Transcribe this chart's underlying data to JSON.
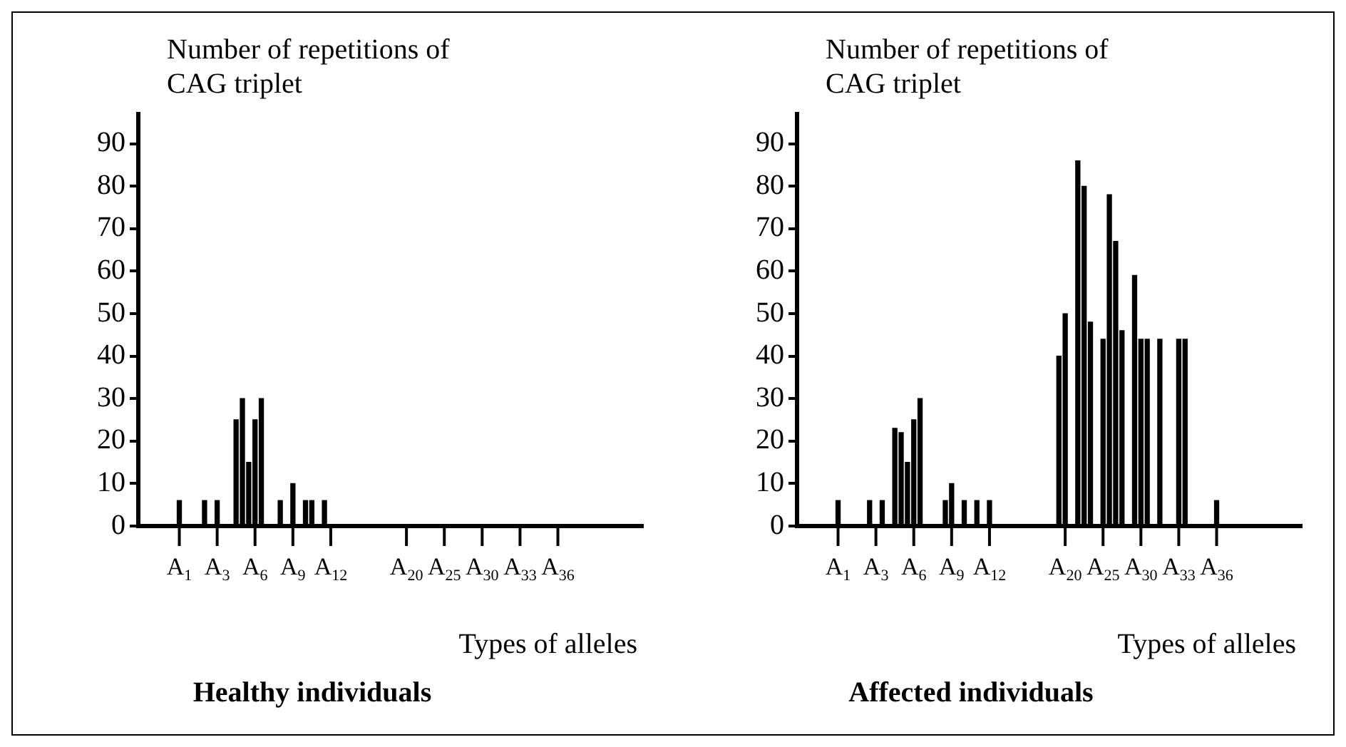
{
  "chart_data": [
    {
      "type": "bar",
      "title": "Healthy individuals",
      "xlabel": "Types of alleles",
      "ylabel": "Number of repetitions of CAG triplet",
      "color": "#000000",
      "categories": [
        null,
        null,
        null,
        null,
        null,
        null,
        "A$_{1}$",
        null,
        null,
        null,
        null,
        null,
        "A$_{3}$",
        null,
        null,
        null,
        null,
        null,
        "A$_{6}$",
        null,
        null,
        null,
        null,
        null,
        "A$_{9}$",
        null,
        null,
        null,
        null,
        null,
        "A$_{12}$",
        null,
        null,
        null,
        null,
        null,
        null,
        null,
        null,
        null,
        null,
        null,
        "A$_{20}$",
        null,
        null,
        null,
        null,
        null,
        "A$_{25}$",
        null,
        null,
        null,
        null,
        null,
        "A$_{30}$",
        null,
        null,
        null,
        null,
        null,
        "A$_{33}$",
        null,
        null,
        null,
        null,
        null,
        "A$_{36}$",
        null,
        null,
        null,
        null,
        null,
        null,
        null,
        null,
        null,
        null,
        null,
        null,
        null
      ],
      "values": [
        null,
        null,
        null,
        null,
        null,
        null,
        6,
        null,
        null,
        null,
        6,
        null,
        6,
        null,
        null,
        25,
        30,
        15,
        25,
        30,
        null,
        null,
        6,
        null,
        10,
        null,
        6,
        6,
        null,
        6,
        null,
        null,
        null,
        null,
        null,
        null,
        null,
        null,
        null,
        null,
        null,
        null,
        null,
        null,
        null,
        null,
        null,
        null,
        null,
        null,
        null,
        null,
        null,
        null,
        null,
        null,
        null,
        null,
        null,
        null,
        null,
        null,
        null,
        null,
        null,
        null,
        null,
        null,
        null,
        null,
        null,
        null,
        null,
        null,
        null,
        null,
        null,
        null,
        null,
        null
      ],
      "ylim": [
        0,
        97
      ],
      "yticks": [
        0,
        10,
        20,
        30,
        40,
        50,
        60,
        70,
        80,
        90
      ]
    },
    {
      "type": "bar",
      "title": "Affected individuals",
      "xlabel": "Types of alleles",
      "ylabel": "Number of repetitions of CAG triplet",
      "color": "#000000",
      "categories": [
        null,
        null,
        null,
        null,
        null,
        null,
        "A$_{1}$",
        null,
        null,
        null,
        null,
        null,
        "A$_{3}$",
        null,
        null,
        null,
        null,
        null,
        "A$_{6}$",
        null,
        null,
        null,
        null,
        null,
        "A$_{9}$",
        null,
        null,
        null,
        null,
        null,
        "A$_{12}$",
        null,
        null,
        null,
        null,
        null,
        null,
        null,
        null,
        null,
        null,
        null,
        "A$_{20}$",
        null,
        null,
        null,
        null,
        null,
        "A$_{25}$",
        null,
        null,
        null,
        null,
        null,
        "A$_{30}$",
        null,
        null,
        null,
        null,
        null,
        "A$_{33}$",
        null,
        null,
        null,
        null,
        null,
        "A$_{36}$",
        null,
        null,
        null,
        null,
        null,
        null,
        null,
        null,
        null,
        null,
        null,
        null,
        null
      ],
      "values": [
        null,
        null,
        null,
        null,
        null,
        null,
        6,
        null,
        null,
        null,
        null,
        6,
        null,
        6,
        null,
        23,
        22,
        15,
        25,
        30,
        null,
        null,
        null,
        6,
        10,
        null,
        6,
        null,
        6,
        null,
        6,
        null,
        null,
        null,
        null,
        null,
        null,
        null,
        null,
        null,
        null,
        40,
        50,
        null,
        86,
        80,
        48,
        null,
        44,
        78,
        67,
        46,
        null,
        59,
        44,
        44,
        null,
        44,
        null,
        null,
        44,
        44,
        null,
        null,
        null,
        null,
        6,
        null,
        null,
        null,
        null,
        null,
        null,
        null,
        null,
        null,
        null,
        null,
        null,
        null
      ],
      "ylim": [
        0,
        97
      ],
      "yticks": [
        0,
        10,
        20,
        30,
        40,
        50,
        60,
        70,
        80,
        90
      ]
    }
  ]
}
